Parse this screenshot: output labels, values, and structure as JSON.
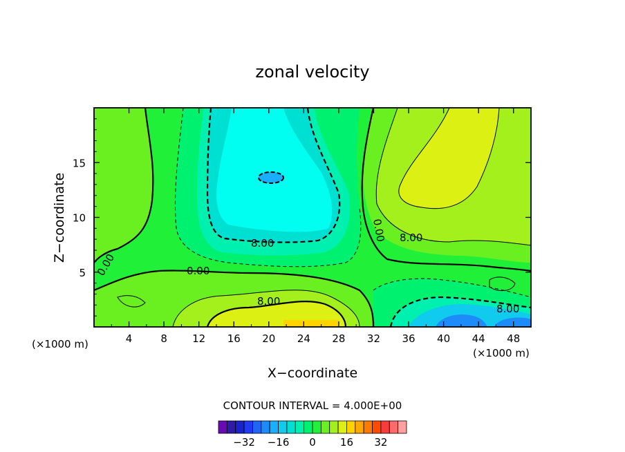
{
  "chart_data": {
    "type": "heatmap",
    "title": "zonal velocity",
    "xlabel": "X−coordinate",
    "ylabel": "Z−coordinate",
    "x_unit_left": "(×1000 m)",
    "x_unit_right": "(×1000 m)",
    "xlim": [
      0,
      50
    ],
    "ylim": [
      0,
      20
    ],
    "x_ticks": [
      4,
      8,
      12,
      16,
      20,
      24,
      28,
      32,
      36,
      40,
      44,
      48
    ],
    "x_tick_labels": [
      "4",
      "8",
      "12",
      "16",
      "20",
      "24",
      "28",
      "32",
      "36",
      "40",
      "44",
      "48"
    ],
    "y_ticks": [
      5,
      10,
      15
    ],
    "y_tick_labels": [
      "5",
      "10",
      "15"
    ],
    "contour_interval_text": "CONTOUR INTERVAL = 4.000E+00",
    "contour_interval": 4,
    "contour_labels": [
      {
        "text": "8.00",
        "x": 20.2,
        "z": 7.6
      },
      {
        "text": "8.00",
        "x": 20.3,
        "z": 2.3
      },
      {
        "text": "8.00",
        "x": 37.2,
        "z": 8.2
      },
      {
        "text": "8.00",
        "x": 47.4,
        "z": 1.4
      },
      {
        "text": "0.00",
        "x": 1.0,
        "z": 5.5
      },
      {
        "text": "0.00",
        "x": 12.3,
        "z": 5.4
      },
      {
        "text": "0.00",
        "x": 30.6,
        "z": 8.9
      }
    ],
    "colorbar": {
      "levels": [
        -40,
        -36,
        -32,
        -28,
        -24,
        -20,
        -16,
        -12,
        -8,
        -4,
        0,
        4,
        8,
        12,
        16,
        20,
        24,
        28,
        32,
        36,
        40
      ],
      "colors": [
        "#6a0ab4",
        "#2e1ca8",
        "#1a22cc",
        "#1f3cf0",
        "#1f66f5",
        "#1e8cf8",
        "#1aaeff",
        "#10cbee",
        "#00e0d2",
        "#00f0b0",
        "#00f070",
        "#20f038",
        "#6af020",
        "#a4f01c",
        "#dcf014",
        "#ffd200",
        "#ffa800",
        "#ff7a00",
        "#ff4a00",
        "#f83c3c",
        "#ff6a6a",
        "#ffa0a0"
      ],
      "tick_values": [
        -32,
        -16,
        0,
        16,
        32
      ],
      "tick_labels": [
        "−32",
        "−16",
        "0",
        "16",
        "32"
      ]
    },
    "field_regions": [
      {
        "level": 4,
        "note": "background"
      },
      {
        "level": -12,
        "x_range": [
          18,
          30
        ],
        "z_range": [
          8,
          20
        ]
      },
      {
        "level": -16,
        "x_range": [
          18.5,
          21.5
        ],
        "z_range": [
          12.8,
          14.3
        ]
      },
      {
        "level": 16,
        "x_range": [
          33,
          47
        ],
        "z_range": [
          10,
          20
        ]
      },
      {
        "level": 16,
        "x_range": [
          13,
          30
        ],
        "z_range": [
          0,
          2.5
        ]
      },
      {
        "level": 24,
        "x_range": [
          22,
          29
        ],
        "z_range": [
          0,
          0.5
        ]
      },
      {
        "level": -20,
        "x_range": [
          39,
          50
        ],
        "z_range": [
          0,
          1
        ]
      }
    ]
  }
}
